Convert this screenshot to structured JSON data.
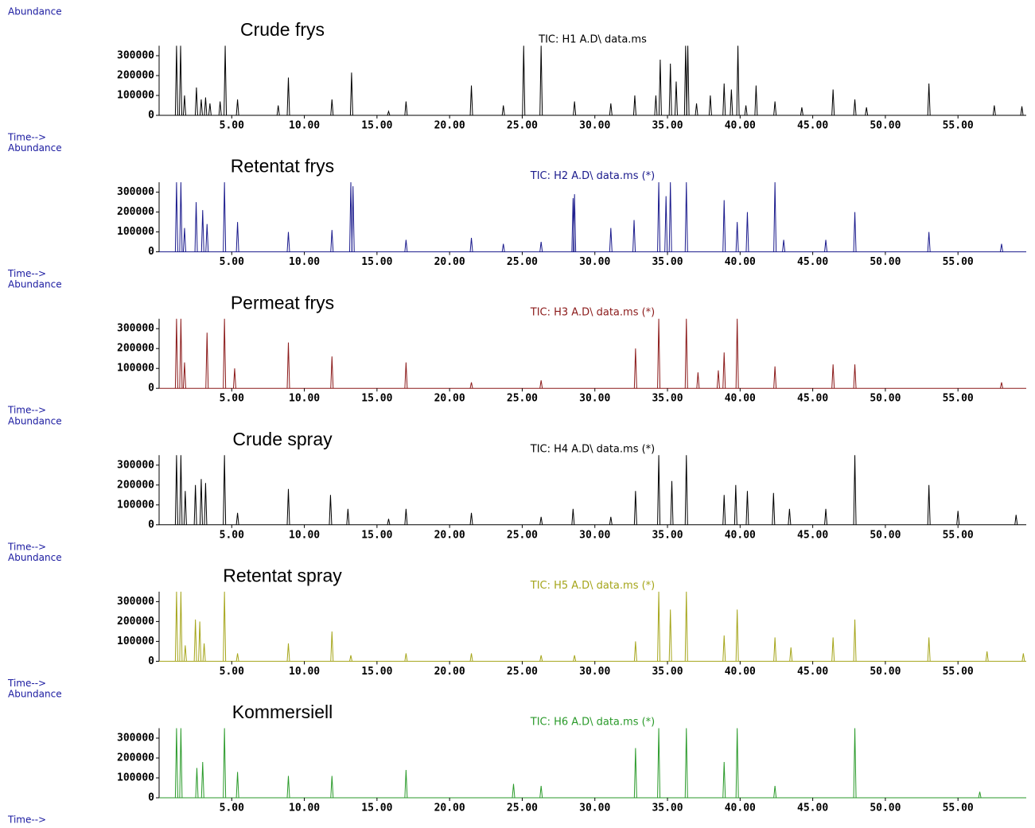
{
  "chart_data": [
    {
      "type": "stem",
      "title": "Crude frys",
      "subtitle": "TIC: H1 A.D\\ data.ms",
      "y_label": "Abundance",
      "x_label": "Time-->",
      "color": "#000000",
      "x": [
        1.2,
        1.48,
        1.75,
        2.57,
        2.9,
        3.2,
        3.5,
        4.2,
        4.55,
        5.4,
        8.2,
        8.9,
        11.9,
        13.25,
        15.8,
        17.0,
        21.5,
        23.7,
        25.1,
        26.3,
        28.6,
        31.1,
        32.75,
        34.2,
        34.5,
        35.2,
        35.6,
        36.25,
        36.4,
        37.0,
        37.95,
        38.9,
        39.4,
        39.85,
        40.4,
        41.1,
        42.4,
        44.25,
        46.4,
        47.9,
        48.7,
        53.0,
        57.5,
        59.4
      ],
      "values": [
        350000,
        350000,
        100000,
        140000,
        80000,
        90000,
        60000,
        70000,
        350000,
        80000,
        50000,
        190000,
        80000,
        215000,
        20000,
        70000,
        150000,
        50000,
        350000,
        350000,
        70000,
        60000,
        100000,
        100000,
        280000,
        260000,
        170000,
        350000,
        350000,
        60000,
        100000,
        160000,
        130000,
        350000,
        50000,
        150000,
        70000,
        40000,
        130000,
        80000,
        40000,
        160000,
        50000,
        45000
      ],
      "xlim": [
        0,
        59.7
      ],
      "ylim": [
        0,
        350000
      ],
      "xticks": [
        {
          "value": 5,
          "label": "5.00"
        },
        {
          "value": 10,
          "label": "10.00"
        },
        {
          "value": 15,
          "label": "15.00"
        },
        {
          "value": 20,
          "label": "20.00"
        },
        {
          "value": 25,
          "label": "25.00"
        },
        {
          "value": 30,
          "label": "30.00"
        },
        {
          "value": 35,
          "label": "35.00"
        },
        {
          "value": 40,
          "label": "40.00"
        },
        {
          "value": 45,
          "label": "45.00"
        },
        {
          "value": 50,
          "label": "50.00"
        },
        {
          "value": 55,
          "label": "55.00"
        }
      ],
      "yticks": [
        0,
        100000,
        200000,
        300000
      ]
    },
    {
      "type": "stem",
      "title": "Retentat frys",
      "subtitle": "TIC: H2 A.D\\ data.ms (*)",
      "y_label": "Abundance",
      "x_label": "Time-->",
      "color": "#1a1a8c",
      "x": [
        1.2,
        1.5,
        1.75,
        2.55,
        3.0,
        3.3,
        4.5,
        5.4,
        8.9,
        11.9,
        13.2,
        13.35,
        17.0,
        21.5,
        23.7,
        26.3,
        28.5,
        28.6,
        31.1,
        32.7,
        34.4,
        34.9,
        35.2,
        36.3,
        38.9,
        39.8,
        40.5,
        42.4,
        43.0,
        45.9,
        47.9,
        53.0,
        58.0
      ],
      "values": [
        350000,
        350000,
        120000,
        250000,
        210000,
        140000,
        350000,
        150000,
        100000,
        110000,
        350000,
        330000,
        60000,
        70000,
        40000,
        50000,
        270000,
        290000,
        120000,
        160000,
        350000,
        280000,
        350000,
        350000,
        260000,
        150000,
        200000,
        350000,
        60000,
        60000,
        200000,
        100000,
        40000
      ],
      "xlim": [
        0,
        59.7
      ],
      "ylim": [
        0,
        350000
      ],
      "xticks": [
        {
          "value": 5,
          "label": "5.00"
        },
        {
          "value": 10,
          "label": "10.00"
        },
        {
          "value": 15,
          "label": "15.00"
        },
        {
          "value": 20,
          "label": "20.00"
        },
        {
          "value": 25,
          "label": "25.00"
        },
        {
          "value": 30,
          "label": "30.00"
        },
        {
          "value": 35,
          "label": "35.00"
        },
        {
          "value": 40,
          "label": "40.00"
        },
        {
          "value": 45,
          "label": "45.00"
        },
        {
          "value": 50,
          "label": "50.00"
        },
        {
          "value": 55,
          "label": "55.00"
        }
      ],
      "yticks": [
        0,
        100000,
        200000,
        300000
      ]
    },
    {
      "type": "stem",
      "title": "Permeat frys",
      "subtitle": "TIC: H3 A.D\\ data.ms (*)",
      "y_label": "Abundance",
      "x_label": "Time-->",
      "color": "#8b1a1a",
      "x": [
        1.2,
        1.5,
        1.75,
        3.3,
        4.5,
        5.2,
        8.9,
        11.9,
        17.0,
        21.5,
        26.3,
        32.8,
        34.4,
        36.3,
        37.1,
        38.5,
        38.9,
        39.8,
        42.4,
        46.4,
        47.9,
        58.0
      ],
      "values": [
        350000,
        350000,
        130000,
        280000,
        350000,
        100000,
        230000,
        160000,
        130000,
        30000,
        40000,
        200000,
        350000,
        350000,
        80000,
        90000,
        180000,
        350000,
        110000,
        120000,
        120000,
        30000
      ],
      "xlim": [
        0,
        59.7
      ],
      "ylim": [
        0,
        350000
      ],
      "xticks": [
        {
          "value": 5,
          "label": "5.00"
        },
        {
          "value": 10,
          "label": "10.00"
        },
        {
          "value": 15,
          "label": "15.00"
        },
        {
          "value": 20,
          "label": "20.00"
        },
        {
          "value": 25,
          "label": "25.00"
        },
        {
          "value": 30,
          "label": "30.00"
        },
        {
          "value": 35,
          "label": "35.00"
        },
        {
          "value": 40,
          "label": "40.00"
        },
        {
          "value": 45,
          "label": "45.00"
        },
        {
          "value": 50,
          "label": "50.00"
        },
        {
          "value": 55,
          "label": "55.00"
        }
      ],
      "yticks": [
        0,
        100000,
        200000,
        300000
      ]
    },
    {
      "type": "stem",
      "title": "Crude spray",
      "subtitle": "TIC: H4 A.D\\ data.ms (*)",
      "y_label": "Abundance",
      "x_label": "Time-->",
      "color": "#000000",
      "x": [
        1.2,
        1.5,
        1.8,
        2.5,
        2.9,
        3.2,
        4.5,
        5.4,
        8.9,
        11.8,
        13.0,
        15.8,
        17.0,
        21.5,
        26.3,
        28.5,
        31.1,
        32.8,
        34.4,
        35.3,
        36.3,
        38.9,
        39.7,
        40.5,
        42.3,
        43.4,
        45.9,
        47.9,
        53.0,
        55.0,
        59.0
      ],
      "values": [
        350000,
        350000,
        170000,
        200000,
        230000,
        210000,
        350000,
        60000,
        180000,
        150000,
        80000,
        30000,
        80000,
        60000,
        40000,
        80000,
        40000,
        170000,
        350000,
        220000,
        350000,
        150000,
        200000,
        170000,
        160000,
        80000,
        80000,
        350000,
        200000,
        70000,
        50000
      ],
      "xlim": [
        0,
        59.7
      ],
      "ylim": [
        0,
        350000
      ],
      "xticks": [
        {
          "value": 5,
          "label": "5.00"
        },
        {
          "value": 10,
          "label": "10.00"
        },
        {
          "value": 15,
          "label": "15.00"
        },
        {
          "value": 20,
          "label": "20.00"
        },
        {
          "value": 25,
          "label": "25.00"
        },
        {
          "value": 30,
          "label": "30.00"
        },
        {
          "value": 35,
          "label": "35.00"
        },
        {
          "value": 40,
          "label": "40.00"
        },
        {
          "value": 45,
          "label": "45.00"
        },
        {
          "value": 50,
          "label": "50.00"
        },
        {
          "value": 55,
          "label": "55.00"
        }
      ],
      "yticks": [
        0,
        100000,
        200000,
        300000
      ]
    },
    {
      "type": "stem",
      "title": "Retentat spray",
      "subtitle": "TIC: H5 A.D\\ data.ms (*)",
      "y_label": "Abundance",
      "x_label": "Time-->",
      "color": "#a5a51a",
      "x": [
        1.2,
        1.5,
        1.8,
        2.5,
        2.8,
        3.1,
        4.5,
        5.4,
        8.9,
        11.9,
        13.2,
        17.0,
        21.5,
        26.3,
        28.6,
        32.8,
        34.4,
        35.2,
        36.3,
        38.9,
        39.8,
        42.4,
        43.5,
        46.4,
        47.9,
        53.0,
        57.0,
        59.5
      ],
      "values": [
        350000,
        350000,
        80000,
        210000,
        200000,
        90000,
        350000,
        40000,
        90000,
        150000,
        30000,
        40000,
        40000,
        30000,
        30000,
        100000,
        350000,
        260000,
        350000,
        130000,
        260000,
        120000,
        70000,
        120000,
        210000,
        120000,
        50000,
        40000
      ],
      "xlim": [
        0,
        59.7
      ],
      "ylim": [
        0,
        350000
      ],
      "xticks": [
        {
          "value": 5,
          "label": "5.00"
        },
        {
          "value": 10,
          "label": "10.00"
        },
        {
          "value": 15,
          "label": "15.00"
        },
        {
          "value": 20,
          "label": "20.00"
        },
        {
          "value": 25,
          "label": "25.00"
        },
        {
          "value": 30,
          "label": "30.00"
        },
        {
          "value": 35,
          "label": "35.00"
        },
        {
          "value": 40,
          "label": "40.00"
        },
        {
          "value": 45,
          "label": "45.00"
        },
        {
          "value": 50,
          "label": "50.00"
        },
        {
          "value": 55,
          "label": "55.00"
        }
      ],
      "yticks": [
        0,
        100000,
        200000,
        300000
      ]
    },
    {
      "type": "stem",
      "title": "Kommersiell",
      "subtitle": "TIC: H6 A.D\\ data.ms (*)",
      "y_label": "Abundance",
      "x_label": "Time-->",
      "color": "#2a9a2a",
      "x": [
        1.2,
        1.5,
        2.6,
        3.0,
        4.5,
        5.4,
        8.9,
        11.9,
        17.0,
        24.4,
        26.3,
        32.8,
        34.4,
        36.3,
        38.9,
        39.8,
        42.4,
        47.9,
        56.5
      ],
      "values": [
        350000,
        350000,
        150000,
        180000,
        350000,
        130000,
        110000,
        110000,
        140000,
        70000,
        60000,
        250000,
        350000,
        350000,
        180000,
        350000,
        60000,
        350000,
        30000
      ],
      "xlim": [
        0,
        59.7
      ],
      "ylim": [
        0,
        350000
      ],
      "xticks": [
        {
          "value": 5,
          "label": "5.00"
        },
        {
          "value": 10,
          "label": "10.00"
        },
        {
          "value": 15,
          "label": "15.00"
        },
        {
          "value": 20,
          "label": "20.00"
        },
        {
          "value": 25,
          "label": "25.00"
        },
        {
          "value": 30,
          "label": "30.00"
        },
        {
          "value": 35,
          "label": "35.00"
        },
        {
          "value": 40,
          "label": "40.00"
        },
        {
          "value": 45,
          "label": "45.00"
        },
        {
          "value": 50,
          "label": "50.00"
        },
        {
          "value": 55,
          "label": "55.00"
        }
      ],
      "yticks": [
        0,
        100000,
        200000,
        300000
      ]
    }
  ]
}
